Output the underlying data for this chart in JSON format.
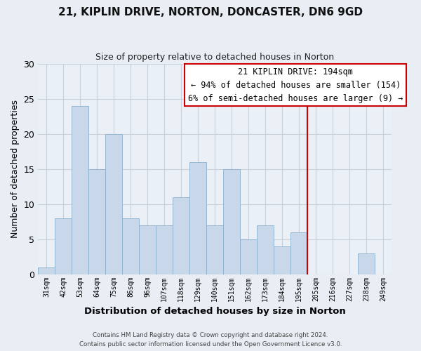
{
  "title": "21, KIPLIN DRIVE, NORTON, DONCASTER, DN6 9GD",
  "subtitle": "Size of property relative to detached houses in Norton",
  "xlabel": "Distribution of detached houses by size in Norton",
  "ylabel": "Number of detached properties",
  "bar_labels": [
    "31sqm",
    "42sqm",
    "53sqm",
    "64sqm",
    "75sqm",
    "86sqm",
    "96sqm",
    "107sqm",
    "118sqm",
    "129sqm",
    "140sqm",
    "151sqm",
    "162sqm",
    "173sqm",
    "184sqm",
    "195sqm",
    "205sqm",
    "216sqm",
    "227sqm",
    "238sqm",
    "249sqm"
  ],
  "bar_values": [
    1,
    8,
    24,
    15,
    20,
    8,
    7,
    7,
    11,
    16,
    7,
    15,
    5,
    7,
    4,
    6,
    0,
    0,
    0,
    3,
    0
  ],
  "bar_color": "#c8d8ea",
  "bar_edge_color": "#8ab0cc",
  "vline_color": "#cc0000",
  "ylim": [
    0,
    30
  ],
  "yticks": [
    0,
    5,
    10,
    15,
    20,
    25,
    30
  ],
  "annotation_title": "21 KIPLIN DRIVE: 194sqm",
  "annotation_line1": "← 94% of detached houses are smaller (154)",
  "annotation_line2": "6% of semi-detached houses are larger (9) →",
  "annotation_box_facecolor": "#ffffff",
  "annotation_border_color": "#cc0000",
  "footer_line1": "Contains HM Land Registry data © Crown copyright and database right 2024.",
  "footer_line2": "Contains public sector information licensed under the Open Government Licence v3.0.",
  "bg_color": "#e8eef4",
  "plot_bg_color": "#eaf0f6",
  "grid_color": "#c8d0dc"
}
